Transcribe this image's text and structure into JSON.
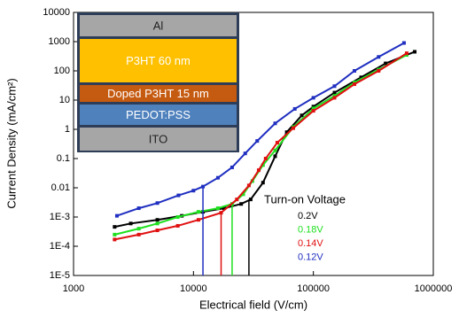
{
  "chart_data": {
    "type": "scatter",
    "x_label": "Electrical field (V/cm)",
    "y_label": "Current Density (mA/cm²)",
    "xscale": "log",
    "yscale": "log",
    "xlim": [
      1000,
      1000000
    ],
    "ylim": [
      1e-05,
      10000
    ],
    "xticks": [
      1000,
      10000,
      100000,
      1000000
    ],
    "yticks": [
      10000,
      1000,
      100,
      10,
      1,
      0.1,
      0.01,
      {
        "value": 0.001,
        "label": "1E-3"
      },
      {
        "value": 0.0001,
        "label": "1E-4"
      },
      {
        "value": 1e-05,
        "label": "1E-5"
      }
    ],
    "legend_title": "Turn-on Voltage",
    "series": [
      {
        "name": "0.2V",
        "color": "#000000",
        "x": [
          2200,
          3000,
          5000,
          8000,
          12000,
          18000,
          25000,
          30000,
          38000,
          48000,
          60000,
          80000,
          100000,
          150000,
          250000,
          400000,
          700000
        ],
        "values": [
          0.00046,
          0.0006,
          0.0008,
          0.0011,
          0.0015,
          0.002,
          0.0028,
          0.004,
          0.015,
          0.12,
          0.8,
          3,
          6,
          18,
          60,
          180,
          450
        ],
        "turn_on_x": 29000,
        "turn_on_y": 0.004
      },
      {
        "name": "0.18V",
        "color": "#1fe01f",
        "x": [
          2200,
          3500,
          5000,
          7400,
          11000,
          16000,
          21000,
          26000,
          31000,
          38000,
          48000,
          68000,
          100000,
          150000,
          220000,
          350000,
          600000
        ],
        "values": [
          0.00025,
          0.0004,
          0.0006,
          0.001,
          0.0015,
          0.002,
          0.0028,
          0.006,
          0.017,
          0.06,
          0.19,
          1.2,
          5.2,
          14,
          40,
          110,
          350
        ],
        "turn_on_x": 21000,
        "turn_on_y": 0.003
      },
      {
        "name": "0.14V",
        "color": "#e01010",
        "x": [
          2200,
          3500,
          5000,
          7400,
          11000,
          17000,
          23000,
          29000,
          35000,
          40000,
          50000,
          68000,
          100000,
          150000,
          220000,
          350000,
          600000
        ],
        "values": [
          0.00017,
          0.00025,
          0.00035,
          0.0005,
          0.0008,
          0.0014,
          0.004,
          0.012,
          0.04,
          0.1,
          0.35,
          1.1,
          4.3,
          12,
          35,
          100,
          400
        ],
        "turn_on_x": 17000,
        "turn_on_y": 0.0016
      },
      {
        "name": "0.12V",
        "color": "#1f2fc0",
        "x": [
          2300,
          3500,
          5000,
          7500,
          10000,
          12000,
          16000,
          21000,
          27000,
          34000,
          48000,
          70000,
          100000,
          150000,
          220000,
          350000,
          570000
        ],
        "values": [
          0.0011,
          0.002,
          0.003,
          0.0055,
          0.008,
          0.011,
          0.022,
          0.05,
          0.15,
          0.4,
          1.6,
          5,
          12,
          30,
          100,
          300,
          900
        ],
        "turn_on_x": 12000,
        "turn_on_y": 0.011
      }
    ],
    "inset_layers": [
      {
        "label": "Al",
        "color": "#a6a6a6",
        "text_color": "#222222"
      },
      {
        "label": "P3HT 60 nm",
        "color": "#ffc000",
        "text_color": "#ffffff"
      },
      {
        "label": "Doped P3HT 15 nm",
        "color": "#c55a11",
        "text_color": "#ffffff"
      },
      {
        "label": "PEDOT:PSS",
        "color": "#4f81bd",
        "text_color": "#ffffff"
      },
      {
        "label": "ITO",
        "color": "#a6a6a6",
        "text_color": "#222222"
      }
    ]
  }
}
